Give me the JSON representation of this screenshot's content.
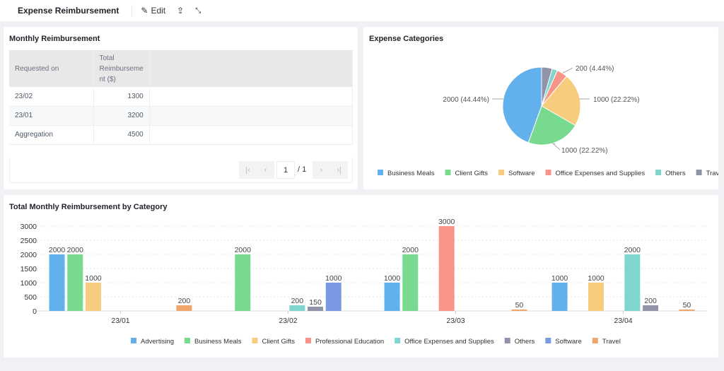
{
  "header": {
    "title": "Expense Reimbursement",
    "edit_label": "Edit"
  },
  "table_card": {
    "title": "Monthly Reimbursement",
    "columns": [
      "Requested on",
      "Total Reimburseme nt ($)"
    ],
    "rows": [
      [
        "23/02",
        "1300"
      ],
      [
        "23/01",
        "3200"
      ],
      [
        "Aggregation",
        "4500"
      ]
    ],
    "pager": {
      "page": "1",
      "total": "/ 1"
    }
  },
  "pie_card": {
    "title": "Expense Categories",
    "chart_data": {
      "type": "pie",
      "slices": [
        {
          "name": "Business Meals",
          "value": 2000,
          "label": "2000 (44.44%)",
          "color": "#62b0ec"
        },
        {
          "name": "Client Gifts",
          "value": 1000,
          "label": "1000 (22.22%)",
          "color": "#77da8f"
        },
        {
          "name": "Software",
          "value": 1000,
          "label": "1000 (22.22%)",
          "color": "#f8cc7e"
        },
        {
          "name": "Office Expenses and Supplies",
          "value": 200,
          "label": "200 (4.44%)",
          "color": "#f79588"
        },
        {
          "name": "Others",
          "value": 100,
          "label": "",
          "color": "#7fd6cf"
        },
        {
          "name": "Travel",
          "value": 200,
          "label": "",
          "color": "#9193a8"
        }
      ],
      "legend": "bottom"
    }
  },
  "bar_card": {
    "title": "Total Monthly Reimbursement by Category",
    "chart_data": {
      "type": "bar",
      "categories": [
        "23/01",
        "23/02",
        "23/03",
        "23/04"
      ],
      "ylim": [
        0,
        3000
      ],
      "yticks": [
        "0",
        "500",
        "1000",
        "1500",
        "2000",
        "2500",
        "3000"
      ],
      "grid": true,
      "legend": "bottom",
      "series": [
        {
          "name": "Advertising",
          "color": "#62b0ec",
          "values": [
            2000,
            0,
            1000,
            1000
          ]
        },
        {
          "name": "Business Meals",
          "color": "#77da8f",
          "values": [
            2000,
            2000,
            2000,
            0
          ]
        },
        {
          "name": "Client Gifts",
          "color": "#f8cc7e",
          "values": [
            1000,
            0,
            0,
            1000
          ]
        },
        {
          "name": "Professional Education",
          "color": "#f79588",
          "values": [
            0,
            0,
            3000,
            0
          ]
        },
        {
          "name": "Office Expenses and Supplies",
          "color": "#7fd6cf",
          "values": [
            0,
            200,
            0,
            2000
          ]
        },
        {
          "name": "Others",
          "color": "#9193a8",
          "values": [
            0,
            150,
            0,
            200
          ]
        },
        {
          "name": "Software",
          "color": "#7999e2",
          "values": [
            0,
            1000,
            0,
            0
          ]
        },
        {
          "name": "Travel",
          "color": "#f0a56a",
          "values": [
            200,
            0,
            50,
            50
          ]
        }
      ]
    }
  }
}
